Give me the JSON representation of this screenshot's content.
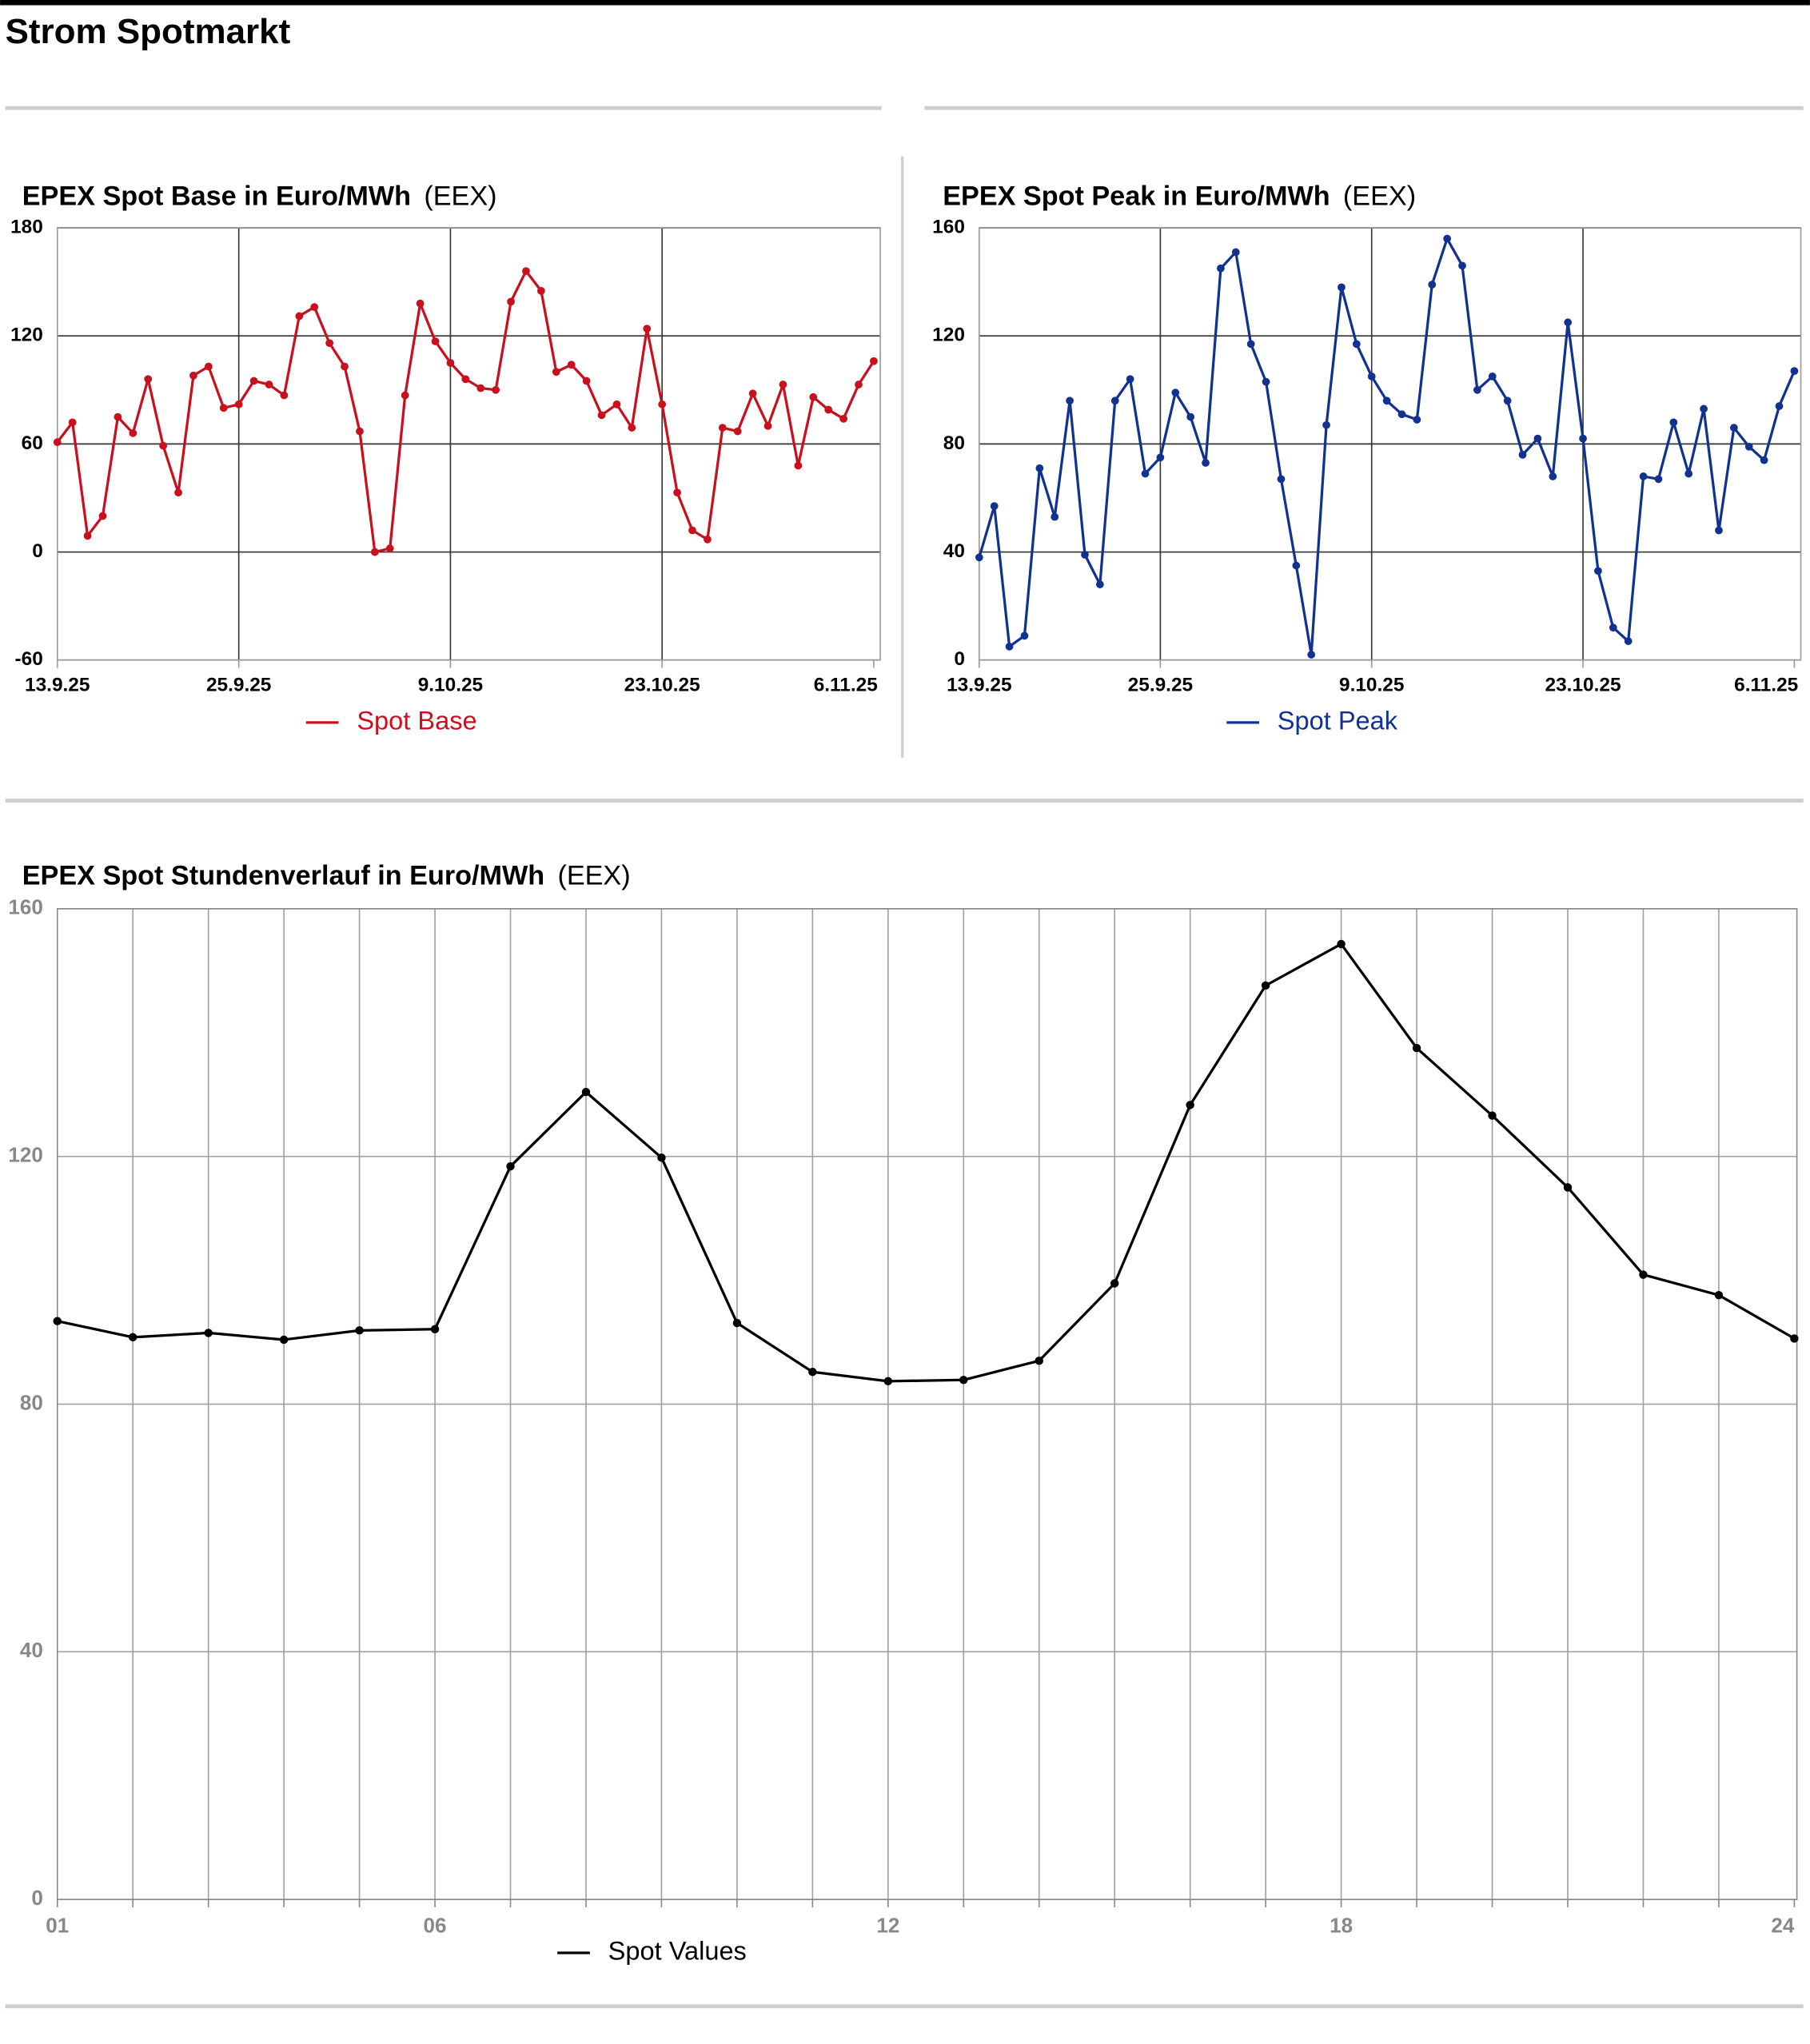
{
  "header": {
    "title": "Strom Spotmarkt"
  },
  "chart_data": [
    {
      "type": "line",
      "title": "EPEX Spot Base in Euro/MWh",
      "source": "(EEX)",
      "categories": [
        "13.9.25",
        null,
        null,
        null,
        null,
        null,
        null,
        null,
        null,
        null,
        null,
        null,
        "25.9.25",
        null,
        null,
        null,
        null,
        null,
        null,
        null,
        null,
        null,
        null,
        null,
        null,
        null,
        "9.10.25",
        null,
        null,
        null,
        null,
        null,
        null,
        null,
        null,
        null,
        null,
        null,
        null,
        null,
        "23.10.25",
        null,
        null,
        null,
        null,
        null,
        null,
        null,
        null,
        null,
        null,
        null,
        null,
        null,
        "6.11.25"
      ],
      "series": [
        {
          "name": "Spot Base",
          "color": "#c8101f",
          "values": [
            61,
            72,
            9,
            20,
            75,
            66,
            96,
            59,
            33,
            98,
            103,
            80,
            82,
            95,
            93,
            87,
            131,
            136,
            116,
            103,
            67,
            0,
            2,
            87,
            138,
            117,
            105,
            96,
            91,
            90,
            139,
            156,
            145,
            100,
            104,
            95,
            76,
            82,
            69,
            124,
            82,
            33,
            12,
            7,
            69,
            67,
            88,
            70,
            93,
            48,
            86,
            79,
            74,
            93,
            106
          ]
        }
      ],
      "ylim": [
        -60,
        180
      ],
      "yticks": [
        -60,
        0,
        60,
        120,
        180
      ],
      "grid": true,
      "xgrid": "labeled"
    },
    {
      "type": "line",
      "title": "EPEX Spot Peak in Euro/MWh",
      "source": "(EEX)",
      "categories": [
        "13.9.25",
        null,
        null,
        null,
        null,
        null,
        null,
        null,
        null,
        null,
        null,
        null,
        "25.9.25",
        null,
        null,
        null,
        null,
        null,
        null,
        null,
        null,
        null,
        null,
        null,
        null,
        null,
        "9.10.25",
        null,
        null,
        null,
        null,
        null,
        null,
        null,
        null,
        null,
        null,
        null,
        null,
        null,
        "23.10.25",
        null,
        null,
        null,
        null,
        null,
        null,
        null,
        null,
        null,
        null,
        null,
        null,
        null,
        "6.11.25"
      ],
      "series": [
        {
          "name": "Spot Peak",
          "color": "#12328f",
          "values": [
            38,
            57,
            5,
            9,
            71,
            53,
            96,
            39,
            28,
            96,
            104,
            69,
            75,
            99,
            90,
            73,
            145,
            151,
            117,
            103,
            67,
            35,
            2,
            87,
            138,
            117,
            105,
            96,
            91,
            89,
            139,
            156,
            146,
            100,
            105,
            96,
            76,
            82,
            68,
            125,
            82,
            33,
            12,
            7,
            68,
            67,
            88,
            69,
            93,
            48,
            86,
            79,
            74,
            94,
            107
          ]
        }
      ],
      "ylim": [
        0,
        160
      ],
      "yticks": [
        0,
        40,
        80,
        120,
        160
      ],
      "grid": true,
      "xgrid": "labeled"
    },
    {
      "type": "line",
      "title": "EPEX Spot Stundenverlauf in Euro/MWh",
      "source": "(EEX)",
      "categories": [
        "01",
        null,
        null,
        null,
        null,
        "06",
        null,
        null,
        null,
        null,
        null,
        "12",
        null,
        null,
        null,
        null,
        null,
        "18",
        null,
        null,
        null,
        null,
        null,
        "24"
      ],
      "series": [
        {
          "name": "Spot Values",
          "color": "#000000",
          "values": [
            93.4,
            90.8,
            91.5,
            90.4,
            91.9,
            92.1,
            118.4,
            130.4,
            119.8,
            93.1,
            85.2,
            83.7,
            83.9,
            87.0,
            99.5,
            128.3,
            147.6,
            154.3,
            137.5,
            126.6,
            115.0,
            100.9,
            97.6,
            90.6
          ]
        }
      ],
      "ylim": [
        0,
        160
      ],
      "yticks": [
        0,
        40,
        80,
        120,
        160
      ],
      "grid": true,
      "xgrid": "all"
    }
  ]
}
